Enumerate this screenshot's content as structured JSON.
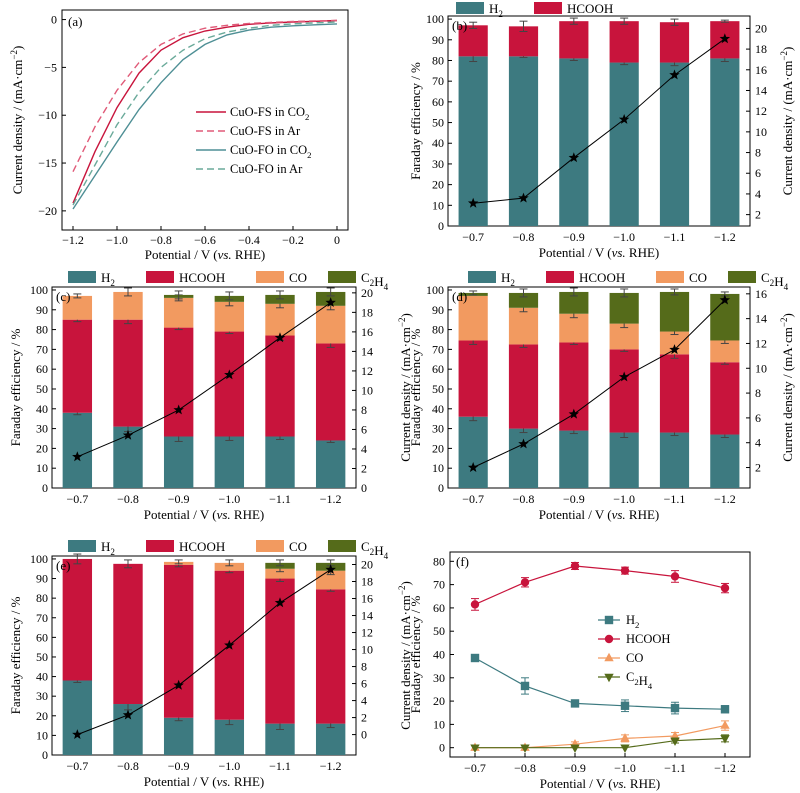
{
  "colors": {
    "H2": "#3d7a80",
    "HCOOH": "#c8143c",
    "CO": "#f29a60",
    "C2H4": "#556b1a",
    "line": "#000000",
    "co2_fs": "#c8143c",
    "ar_fs": "#e05a78",
    "co2_fo": "#4e8f95",
    "ar_fo": "#6aaa9a"
  },
  "chart_data": [
    {
      "panel": "(a)",
      "type": "line",
      "xlabel": "Potential / V (vs. RHE)",
      "ylabel": "Current density / (mA·cm⁻²)",
      "xlim": [
        -1.25,
        0.05
      ],
      "ylim": [
        -22,
        1
      ],
      "xticks": [
        "-1.2",
        "-1.0",
        "-0.8",
        "-0.6",
        "-0.4",
        "-0.2",
        "0"
      ],
      "xtick_values": [
        -1.2,
        -1.0,
        -0.8,
        -0.6,
        -0.4,
        -0.2,
        0
      ],
      "yticks": [
        "-20",
        "-15",
        "-10",
        "-5",
        "0"
      ],
      "ytick_values": [
        -20,
        -15,
        -10,
        -5,
        0
      ],
      "legend_position": "center-right",
      "series": [
        {
          "name": "CuO-FS in CO2",
          "style": "solid",
          "color_key": "co2_fs",
          "x": [
            -1.2,
            -1.1,
            -1.0,
            -0.9,
            -0.8,
            -0.7,
            -0.6,
            -0.5,
            -0.4,
            -0.3,
            -0.2,
            -0.1,
            0
          ],
          "y": [
            -19.2,
            -13.8,
            -9.2,
            -5.6,
            -3.2,
            -1.9,
            -1.2,
            -0.8,
            -0.5,
            -0.35,
            -0.25,
            -0.18,
            -0.1
          ]
        },
        {
          "name": "CuO-FS in Ar",
          "style": "dashed",
          "color_key": "ar_fs",
          "x": [
            -1.2,
            -1.1,
            -1.0,
            -0.9,
            -0.8,
            -0.7,
            -0.6,
            -0.5,
            -0.4,
            -0.3,
            -0.2,
            -0.1,
            0
          ],
          "y": [
            -15.9,
            -11.2,
            -7.4,
            -4.5,
            -2.6,
            -1.5,
            -0.9,
            -0.6,
            -0.4,
            -0.3,
            -0.2,
            -0.15,
            -0.1
          ]
        },
        {
          "name": "CuO-FO in CO2",
          "style": "solid",
          "color_key": "co2_fo",
          "x": [
            -1.2,
            -1.1,
            -1.0,
            -0.9,
            -0.8,
            -0.7,
            -0.6,
            -0.5,
            -0.4,
            -0.3,
            -0.2,
            -0.1,
            0
          ],
          "y": [
            -19.8,
            -16.3,
            -12.8,
            -9.4,
            -6.6,
            -4.2,
            -2.6,
            -1.6,
            -1.1,
            -0.8,
            -0.65,
            -0.55,
            -0.45
          ]
        },
        {
          "name": "CuO-FO in Ar",
          "style": "dashed",
          "color_key": "ar_fo",
          "x": [
            -1.2,
            -1.1,
            -1.0,
            -0.9,
            -0.8,
            -0.7,
            -0.6,
            -0.5,
            -0.4,
            -0.3,
            -0.2,
            -0.1,
            0
          ],
          "y": [
            -19.4,
            -15.2,
            -11.0,
            -7.6,
            -5.0,
            -3.2,
            -2.0,
            -1.3,
            -0.9,
            -0.6,
            -0.45,
            -0.35,
            -0.25
          ]
        }
      ]
    },
    {
      "panel": "(b)",
      "type": "bar",
      "categories": [
        "−0.7",
        "−0.8",
        "−0.9",
        "−1.0",
        "−1.1",
        "−1.2"
      ],
      "xlabel": "Potential / V (vs. RHE)",
      "ylabel": "Faraday efficiency / %",
      "ylabel_right": "Current density / (mA·cm⁻²)",
      "ylim": [
        0,
        100
      ],
      "yticks": [
        "0",
        "10",
        "20",
        "30",
        "40",
        "50",
        "60",
        "70",
        "80",
        "90",
        "100"
      ],
      "ylim_right": [
        0.9,
        21.2
      ],
      "yticks_right": [
        "2",
        "4",
        "6",
        "8",
        "10",
        "12",
        "14",
        "16",
        "18",
        "20"
      ],
      "series": [
        {
          "name": "H2",
          "values": [
            82,
            82,
            81,
            79,
            79,
            81
          ],
          "err": [
            2.5,
            0.5,
            1,
            1,
            1.5,
            1.5
          ]
        },
        {
          "name": "HCOOH",
          "values": [
            15,
            14.5,
            18,
            20,
            19.5,
            18
          ],
          "err": [
            1.5,
            2.5,
            1.5,
            1.5,
            1.5,
            0.5
          ]
        }
      ],
      "current_density": [
        3.1,
        3.6,
        7.5,
        11.2,
        15.5,
        19.0
      ]
    },
    {
      "panel": "(c)",
      "type": "bar",
      "categories": [
        "−0.7",
        "−0.8",
        "−0.9",
        "−1.0",
        "−1.1",
        "−1.2"
      ],
      "xlabel": "Potential / V (vs. RHE)",
      "ylabel": "Faraday efficiency / %",
      "ylabel_right": "Current density / (mA·cm⁻²)",
      "ylim": [
        0,
        100
      ],
      "yticks": [
        "0",
        "10",
        "20",
        "30",
        "40",
        "50",
        "60",
        "70",
        "80",
        "90",
        "100"
      ],
      "ylim_right": [
        0,
        20.6
      ],
      "yticks_right": [
        "0",
        "2",
        "4",
        "6",
        "8",
        "10",
        "12",
        "14",
        "16",
        "18",
        "20"
      ],
      "series": [
        {
          "name": "H2",
          "values": [
            38,
            31,
            26,
            26,
            26,
            24
          ],
          "err": [
            1,
            2.5,
            2.5,
            2,
            1.5,
            1
          ]
        },
        {
          "name": "HCOOH",
          "values": [
            47,
            54,
            55,
            53,
            51,
            49
          ],
          "err": [
            1,
            2,
            1,
            1,
            2.5,
            2
          ]
        },
        {
          "name": "CO",
          "values": [
            12,
            14,
            15,
            15,
            16,
            19
          ],
          "err": [
            1,
            2,
            1.5,
            2,
            2,
            2
          ]
        },
        {
          "name": "C2H4",
          "values": [
            0,
            0,
            1.5,
            3,
            4.5,
            7
          ],
          "err": [
            0,
            0,
            2,
            2,
            2,
            2
          ]
        }
      ],
      "current_density": [
        3.2,
        5.4,
        8.0,
        11.6,
        15.4,
        19.0
      ]
    },
    {
      "panel": "(d)",
      "type": "bar",
      "categories": [
        "−0.7",
        "−0.8",
        "−0.9",
        "−1.0",
        "−1.1",
        "−1.2"
      ],
      "xlabel": "Potential / V (vs. RHE)",
      "ylabel": "Faraday efficiency / %",
      "ylabel_right": "Current density / (mA·cm⁻²)",
      "ylim": [
        0,
        100
      ],
      "yticks": [
        "0",
        "10",
        "20",
        "30",
        "40",
        "50",
        "60",
        "70",
        "80",
        "90",
        "100"
      ],
      "ylim_right": [
        0.35,
        16.55
      ],
      "yticks_right": [
        "2",
        "4",
        "6",
        "8",
        "10",
        "12",
        "14",
        "16"
      ],
      "series": [
        {
          "name": "H2",
          "values": [
            36,
            30,
            29,
            28,
            28,
            27
          ],
          "err": [
            2,
            2,
            1.5,
            2.5,
            1.5,
            1.5
          ]
        },
        {
          "name": "HCOOH",
          "values": [
            38.5,
            42.5,
            44.5,
            42,
            39.5,
            36.5
          ],
          "err": [
            2,
            1.5,
            1,
            1,
            2,
            1
          ]
        },
        {
          "name": "CO",
          "values": [
            22.5,
            18.5,
            14.5,
            13,
            11.5,
            11
          ],
          "err": [
            0,
            2,
            2,
            2,
            1.5,
            1.5
          ]
        },
        {
          "name": "C2H4",
          "values": [
            1.5,
            7.5,
            11,
            15.5,
            20,
            23.5
          ],
          "err": [
            1,
            2,
            2,
            2,
            1.5,
            1
          ]
        }
      ],
      "current_density": [
        2.0,
        3.9,
        6.3,
        9.3,
        11.5,
        15.5
      ]
    },
    {
      "panel": "(e)",
      "type": "bar",
      "categories": [
        "−0.7",
        "−0.8",
        "−0.9",
        "−1.0",
        "−1.1",
        "−1.2"
      ],
      "xlabel": "Potential / V (vs. RHE)",
      "ylabel": "Faraday efficiency / %",
      "ylabel_right": "Current density / (mA·cm⁻²)",
      "ylim": [
        0,
        100
      ],
      "yticks": [
        "0",
        "10",
        "20",
        "30",
        "40",
        "50",
        "60",
        "70",
        "80",
        "90",
        "100"
      ],
      "ylim_right": [
        -2.4,
        21.0
      ],
      "yticks_right": [
        "0",
        "2",
        "4",
        "6",
        "8",
        "10",
        "12",
        "14",
        "16",
        "18",
        "20"
      ],
      "series": [
        {
          "name": "H2",
          "values": [
            38,
            26,
            19,
            18,
            16,
            16
          ],
          "err": [
            1,
            3,
            1.5,
            2.5,
            3,
            2
          ]
        },
        {
          "name": "HCOOH",
          "values": [
            62,
            71.5,
            78,
            76,
            74,
            68.5
          ],
          "err": [
            2.5,
            2,
            1,
            1,
            1.5,
            1
          ]
        },
        {
          "name": "CO",
          "values": [
            0,
            0,
            1.5,
            4,
            5,
            9.5
          ],
          "err": [
            0,
            0,
            1,
            1.5,
            1.5,
            2
          ]
        },
        {
          "name": "C2H4",
          "values": [
            0,
            0,
            0,
            0,
            3,
            4
          ],
          "err": [
            0,
            0,
            0,
            0,
            1.5,
            1.5
          ]
        }
      ],
      "current_density": [
        0.0,
        2.3,
        5.8,
        10.5,
        15.5,
        19.4
      ]
    },
    {
      "panel": "(f)",
      "type": "line",
      "categories": [
        "−0.7",
        "−0.8",
        "−0.9",
        "−1.0",
        "−1.1",
        "−1.2"
      ],
      "xlabel": "Potential / V (vs. RHE)",
      "ylabel": "Faraday efficiency / %",
      "ylim": [
        -4,
        84
      ],
      "yticks": [
        "0",
        "10",
        "20",
        "30",
        "40",
        "50",
        "60",
        "70",
        "80"
      ],
      "legend_position": "center-right",
      "series": [
        {
          "name": "H2",
          "marker": "square",
          "color_key": "H2",
          "values": [
            38.5,
            26.5,
            19,
            18,
            17,
            16.5
          ],
          "err": [
            0.5,
            3.5,
            1,
            2.5,
            2.5,
            1.5
          ]
        },
        {
          "name": "HCOOH",
          "marker": "circle",
          "color_key": "HCOOH",
          "values": [
            61.5,
            71,
            78,
            76,
            73.5,
            68.5
          ],
          "err": [
            2.5,
            2,
            1.5,
            1.5,
            2.5,
            2
          ]
        },
        {
          "name": "CO",
          "marker": "triangle-up",
          "color_key": "CO",
          "values": [
            0,
            0,
            1.5,
            4,
            5,
            9.5
          ],
          "err": [
            0,
            0,
            1,
            1.5,
            1.5,
            2
          ]
        },
        {
          "name": "C2H4",
          "marker": "triangle-down",
          "color_key": "C2H4",
          "values": [
            0,
            0,
            0,
            0,
            3,
            4
          ],
          "err": [
            0,
            0,
            0,
            0,
            1,
            1.5
          ]
        }
      ]
    }
  ]
}
